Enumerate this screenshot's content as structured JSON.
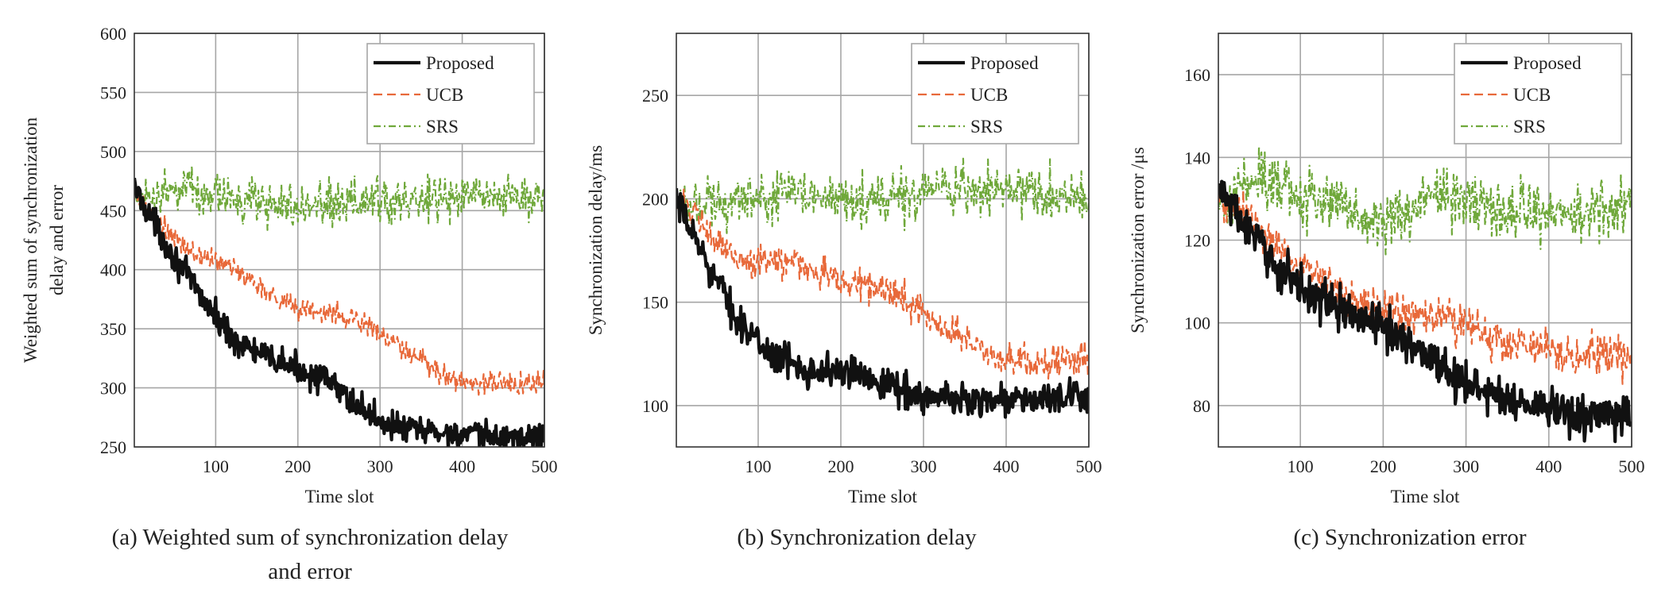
{
  "figure": {
    "panels": [
      {
        "caption_line1": "(a) Weighted sum of synchronization delay",
        "caption_line2": "and error"
      },
      {
        "caption_line1": "(b) Synchronization delay",
        "caption_line2": ""
      },
      {
        "caption_line1": "(c) Synchronization error",
        "caption_line2": ""
      }
    ]
  },
  "colors": {
    "proposed": "#111111",
    "ucb": "#E8693A",
    "srs": "#6FA83A",
    "grid": "#A6A6A6",
    "axis": "#333333"
  },
  "chart_data": [
    {
      "type": "line",
      "title": "(a) Weighted sum of synchronization delay and error",
      "xlabel": "Time slot",
      "ylabel_lines": [
        "Weighted sum of synchronization",
        "delay and error"
      ],
      "xlim": [
        1,
        500
      ],
      "ylim": [
        250,
        600
      ],
      "xticks": [
        100,
        200,
        300,
        400,
        500
      ],
      "yticks": [
        250,
        300,
        350,
        400,
        450,
        500,
        550,
        600
      ],
      "grid": true,
      "legend": "top-right",
      "series": [
        {
          "name": "Proposed",
          "style": "solid",
          "x": [
            1,
            25,
            50,
            75,
            100,
            125,
            150,
            175,
            200,
            225,
            250,
            275,
            300,
            325,
            350,
            375,
            400,
            425,
            450,
            475,
            500
          ],
          "values": [
            470,
            440,
            410,
            385,
            360,
            340,
            330,
            322,
            316,
            310,
            298,
            284,
            272,
            266,
            264,
            262,
            260,
            259,
            258,
            258,
            259
          ],
          "noise": 6
        },
        {
          "name": "UCB",
          "style": "dashed",
          "x": [
            1,
            25,
            50,
            75,
            100,
            125,
            150,
            175,
            200,
            225,
            250,
            275,
            300,
            325,
            350,
            375,
            400,
            425,
            450,
            475,
            500
          ],
          "values": [
            463,
            445,
            425,
            413,
            408,
            400,
            388,
            376,
            368,
            364,
            362,
            357,
            346,
            333,
            322,
            312,
            305,
            304,
            304,
            304,
            305
          ],
          "noise": 5
        },
        {
          "name": "SRS",
          "style": "dashdot",
          "x": [
            1,
            50,
            100,
            150,
            200,
            250,
            300,
            350,
            400,
            450,
            500
          ],
          "values": [
            462,
            468,
            462,
            458,
            452,
            455,
            458,
            460,
            462,
            460,
            462
          ],
          "noise": 9
        }
      ]
    },
    {
      "type": "line",
      "title": "(b) Synchronization delay",
      "xlabel": "Time slot",
      "ylabel_lines": [
        "Synchronization delay/ms"
      ],
      "xlim": [
        1,
        500
      ],
      "ylim": [
        80,
        280
      ],
      "xticks": [
        100,
        200,
        300,
        400,
        500
      ],
      "yticks": [
        100,
        150,
        200,
        250
      ],
      "grid": true,
      "legend": "top-right",
      "series": [
        {
          "name": "Proposed",
          "style": "solid",
          "x": [
            1,
            25,
            50,
            75,
            100,
            125,
            150,
            175,
            200,
            225,
            250,
            275,
            300,
            325,
            350,
            375,
            400,
            425,
            450,
            475,
            500
          ],
          "values": [
            198,
            180,
            160,
            142,
            130,
            123,
            119,
            117,
            116,
            115,
            112,
            108,
            104,
            103,
            103,
            103,
            103,
            103,
            103,
            103,
            104
          ],
          "noise": 4
        },
        {
          "name": "UCB",
          "style": "dashed",
          "x": [
            1,
            25,
            50,
            75,
            100,
            125,
            150,
            175,
            200,
            225,
            250,
            275,
            300,
            325,
            350,
            375,
            400,
            425,
            450,
            475,
            500
          ],
          "values": [
            203,
            190,
            178,
            172,
            168,
            170,
            169,
            164,
            160,
            159,
            156,
            152,
            145,
            138,
            132,
            126,
            122,
            121,
            121,
            121,
            122
          ],
          "noise": 4
        },
        {
          "name": "SRS",
          "style": "dashdot",
          "x": [
            1,
            50,
            100,
            150,
            200,
            250,
            300,
            350,
            400,
            450,
            500
          ],
          "values": [
            200,
            198,
            199,
            203,
            201,
            199,
            201,
            204,
            204,
            202,
            201
          ],
          "noise": 6
        }
      ]
    },
    {
      "type": "line",
      "title": "(c) Synchronization error",
      "xlabel": "Time slot",
      "ylabel_lines": [
        "Synchronization error /μs"
      ],
      "xlim": [
        1,
        500
      ],
      "ylim": [
        70,
        170
      ],
      "xticks": [
        100,
        200,
        300,
        400,
        500
      ],
      "yticks": [
        80,
        100,
        120,
        140,
        160
      ],
      "grid": true,
      "legend": "top-right",
      "series": [
        {
          "name": "Proposed",
          "style": "solid",
          "x": [
            1,
            25,
            50,
            75,
            100,
            125,
            150,
            175,
            200,
            225,
            250,
            275,
            300,
            325,
            350,
            375,
            400,
            425,
            450,
            475,
            500
          ],
          "values": [
            133,
            126,
            119,
            113,
            109,
            106,
            103,
            101,
            99,
            96,
            93,
            89,
            85,
            83,
            82,
            80,
            79,
            78,
            77,
            77,
            78
          ],
          "noise": 2.5
        },
        {
          "name": "UCB",
          "style": "dashed",
          "x": [
            1,
            25,
            50,
            75,
            100,
            125,
            150,
            175,
            200,
            225,
            250,
            275,
            300,
            325,
            350,
            375,
            400,
            425,
            450,
            475,
            500
          ],
          "values": [
            130,
            127,
            123,
            118,
            114,
            111,
            108,
            105,
            103,
            102,
            102,
            101,
            99,
            97,
            95,
            94,
            93,
            92,
            92,
            92,
            92
          ],
          "noise": 2.5
        },
        {
          "name": "SRS",
          "style": "dashdot",
          "x": [
            1,
            25,
            50,
            75,
            100,
            125,
            150,
            175,
            200,
            225,
            250,
            275,
            300,
            325,
            350,
            375,
            400,
            425,
            450,
            475,
            500
          ],
          "values": [
            128,
            132,
            135,
            133,
            131,
            130,
            128,
            126,
            124,
            125,
            130,
            131,
            129,
            128,
            127,
            127,
            126,
            126,
            127,
            128,
            129
          ],
          "noise": 3.5
        }
      ]
    }
  ]
}
